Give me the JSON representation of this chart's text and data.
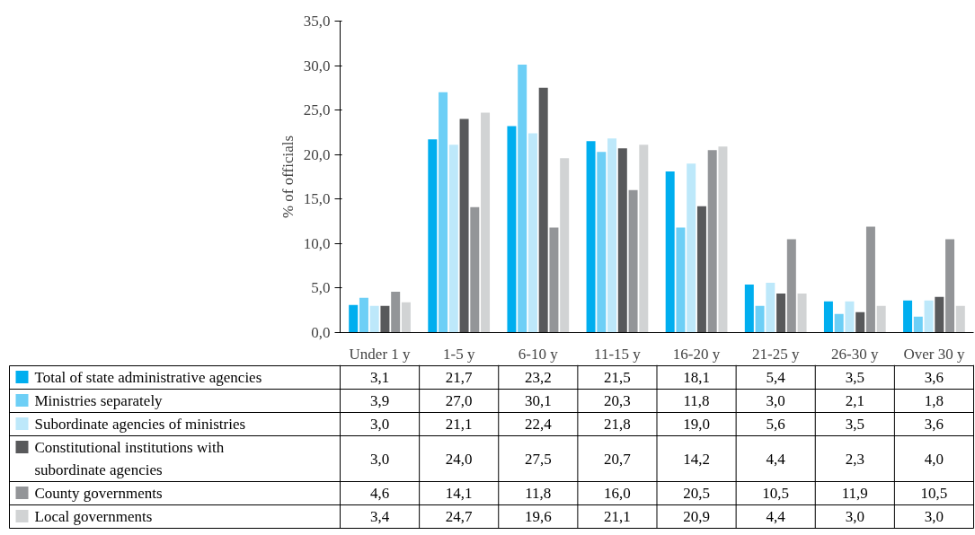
{
  "chart_data": {
    "type": "bar",
    "ylabel": "% of officials",
    "categories": [
      "Under 1 y",
      "1-5 y",
      "6-10 y",
      "11-15 y",
      "16-20 y",
      "21-25 y",
      "26-30 y",
      "Over 30 y"
    ],
    "series": [
      {
        "name": "Total of state administrative agencies",
        "color": "#00aeef",
        "values": [
          3.1,
          21.7,
          23.2,
          21.5,
          18.1,
          5.4,
          3.5,
          3.6
        ],
        "value_labels": [
          "3,1",
          "21,7",
          "23,2",
          "21,5",
          "18,1",
          "5,4",
          "3,5",
          "3,6"
        ]
      },
      {
        "name": "Ministries separately",
        "color": "#6dcff6",
        "values": [
          3.9,
          27.0,
          30.1,
          20.3,
          11.8,
          3.0,
          2.1,
          1.8
        ],
        "value_labels": [
          "3,9",
          "27,0",
          "30,1",
          "20,3",
          "11,8",
          "3,0",
          "2,1",
          "1,8"
        ]
      },
      {
        "name": "Subordinate agencies of ministries",
        "color": "#bde8fa",
        "values": [
          3.0,
          21.1,
          22.4,
          21.8,
          19.0,
          5.6,
          3.5,
          3.6
        ],
        "value_labels": [
          "3,0",
          "21,1",
          "22,4",
          "21,8",
          "19,0",
          "5,6",
          "3,5",
          "3,6"
        ]
      },
      {
        "name": "Constitutional institutions with subordinate agencies",
        "color": "#58595b",
        "values": [
          3.0,
          24.0,
          27.5,
          20.7,
          14.2,
          4.4,
          2.3,
          4.0
        ],
        "value_labels": [
          "3,0",
          "24,0",
          "27,5",
          "20,7",
          "14,2",
          "4,4",
          "2,3",
          "4,0"
        ]
      },
      {
        "name": "County governments",
        "color": "#939598",
        "values": [
          4.6,
          14.1,
          11.8,
          16.0,
          20.5,
          10.5,
          11.9,
          10.5
        ],
        "value_labels": [
          "4,6",
          "14,1",
          "11,8",
          "16,0",
          "20,5",
          "10,5",
          "11,9",
          "10,5"
        ]
      },
      {
        "name": "Local governments",
        "color": "#d1d3d4",
        "values": [
          3.4,
          24.7,
          19.6,
          21.1,
          20.9,
          4.4,
          3.0,
          3.0
        ],
        "value_labels": [
          "3,4",
          "24,7",
          "19,6",
          "21,1",
          "20,9",
          "4,4",
          "3,0",
          "3,0"
        ]
      }
    ],
    "ylim": [
      0,
      35
    ],
    "yticks": [
      {
        "value": 0,
        "label": "0,0"
      },
      {
        "value": 5,
        "label": "5,0"
      },
      {
        "value": 10,
        "label": "10,0"
      },
      {
        "value": 15,
        "label": "15,0"
      },
      {
        "value": 20,
        "label": "20,0"
      },
      {
        "value": 25,
        "label": "25,0"
      },
      {
        "value": 30,
        "label": "30,0"
      },
      {
        "value": 35,
        "label": "35,0"
      }
    ],
    "grid": false,
    "legend": "bottom",
    "data_labels": true
  }
}
